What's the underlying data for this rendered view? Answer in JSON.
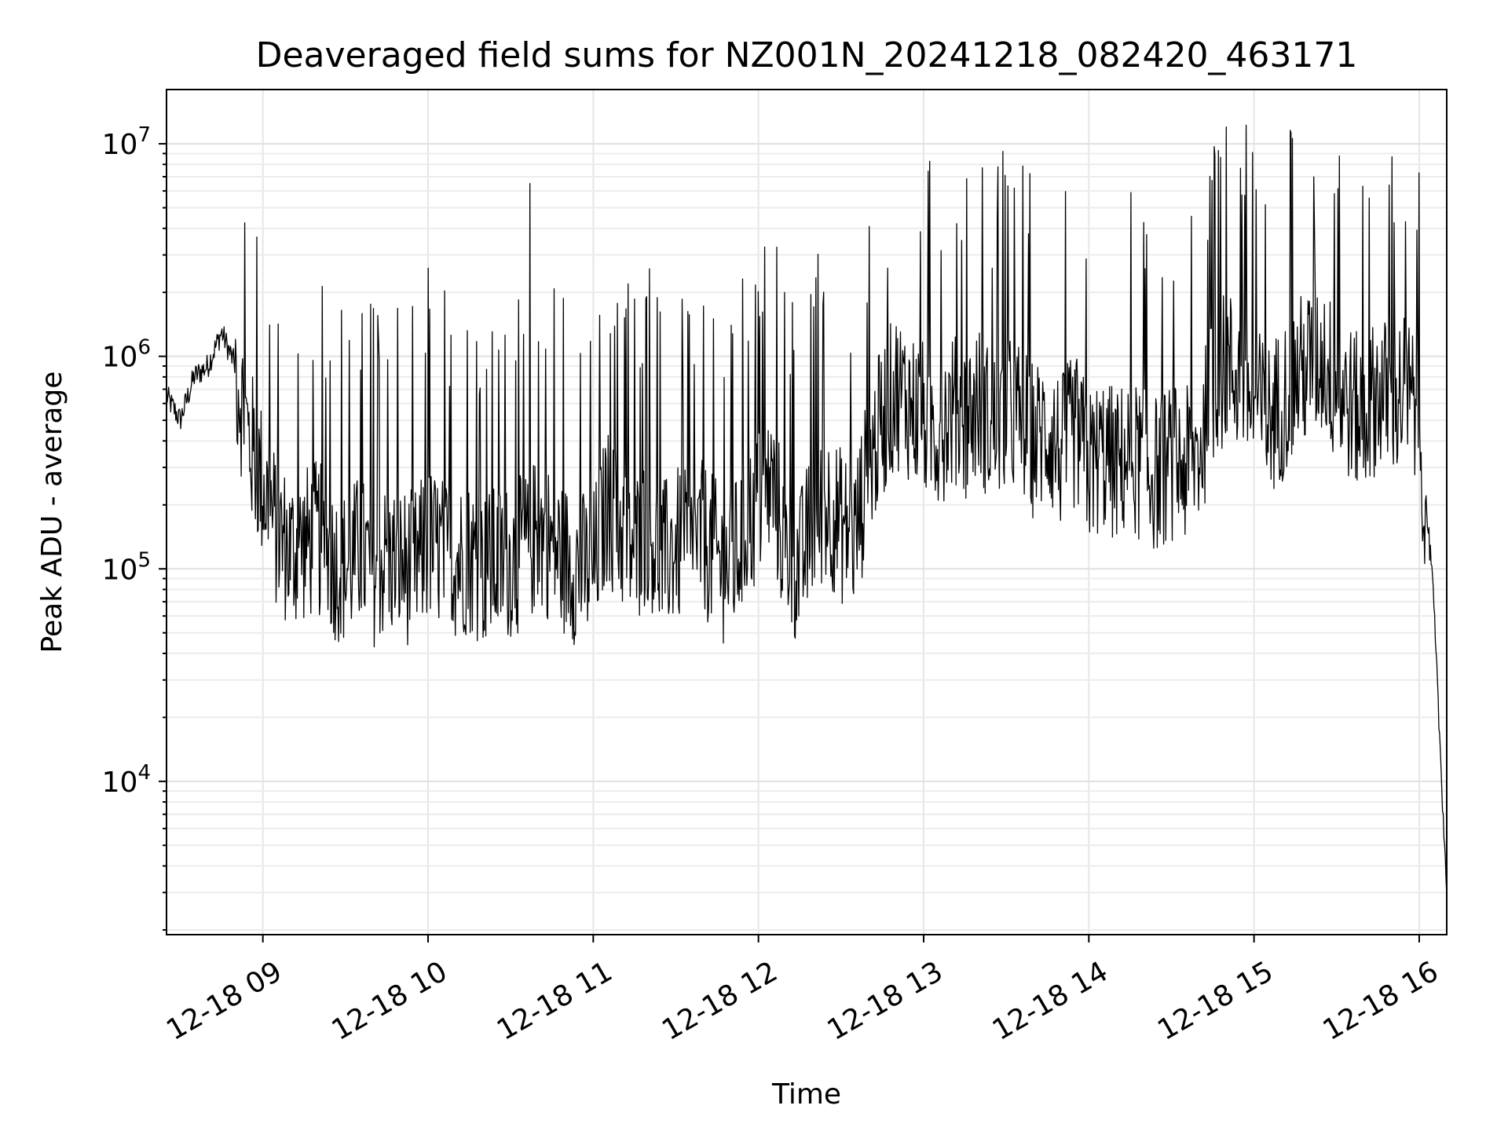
{
  "chart_data": {
    "type": "line",
    "title": "Deaveraged field sums for NZ001N_20241218_082420_463171",
    "xlabel": "Time",
    "ylabel": "Peak ADU - average",
    "yscale": "log",
    "grid": true,
    "x_tick_labels": [
      "12-18 09",
      "12-18 10",
      "12-18 11",
      "12-18 12",
      "12-18 13",
      "12-18 14",
      "12-18 15",
      "12-18 16"
    ],
    "y_tick_labels": [
      {
        "base": "10",
        "exp": "4"
      },
      {
        "base": "10",
        "exp": "5"
      },
      {
        "base": "10",
        "exp": "6"
      },
      {
        "base": "10",
        "exp": "7"
      }
    ],
    "xlim": [
      "2024-12-18 08:25",
      "2024-12-18 16:10"
    ],
    "ylim": [
      1900,
      18000000
    ],
    "line_color": "#000000",
    "series": [
      {
        "x": [
          "2024-12-18 08:25",
          "2024-12-18 08:30",
          "2024-12-18 08:35",
          "2024-12-18 08:40",
          "2024-12-18 08:45",
          "2024-12-18 08:50",
          "2024-12-18 08:55",
          "2024-12-18 09:00",
          "2024-12-18 09:05",
          "2024-12-18 09:10",
          "2024-12-18 09:15",
          "2024-12-18 09:20",
          "2024-12-18 09:25",
          "2024-12-18 09:30",
          "2024-12-18 09:35",
          "2024-12-18 09:40",
          "2024-12-18 09:45",
          "2024-12-18 09:50",
          "2024-12-18 09:55",
          "2024-12-18 10:00",
          "2024-12-18 10:05",
          "2024-12-18 10:10",
          "2024-12-18 10:15",
          "2024-12-18 10:20",
          "2024-12-18 10:25",
          "2024-12-18 10:30",
          "2024-12-18 10:35",
          "2024-12-18 10:40",
          "2024-12-18 10:45",
          "2024-12-18 10:50",
          "2024-12-18 10:55",
          "2024-12-18 11:00",
          "2024-12-18 11:05",
          "2024-12-18 11:10",
          "2024-12-18 11:15",
          "2024-12-18 11:20",
          "2024-12-18 11:25",
          "2024-12-18 11:30",
          "2024-12-18 11:35",
          "2024-12-18 11:40",
          "2024-12-18 11:45",
          "2024-12-18 11:50",
          "2024-12-18 11:55",
          "2024-12-18 12:00",
          "2024-12-18 12:05",
          "2024-12-18 12:10",
          "2024-12-18 12:15",
          "2024-12-18 12:20",
          "2024-12-18 12:25",
          "2024-12-18 12:30",
          "2024-12-18 12:35",
          "2024-12-18 12:40",
          "2024-12-18 12:45",
          "2024-12-18 12:50",
          "2024-12-18 12:55",
          "2024-12-18 13:00",
          "2024-12-18 13:05",
          "2024-12-18 13:10",
          "2024-12-18 13:15",
          "2024-12-18 13:20",
          "2024-12-18 13:25",
          "2024-12-18 13:30",
          "2024-12-18 13:35",
          "2024-12-18 13:40",
          "2024-12-18 13:45",
          "2024-12-18 13:50",
          "2024-12-18 13:55",
          "2024-12-18 14:00",
          "2024-12-18 14:05",
          "2024-12-18 14:10",
          "2024-12-18 14:15",
          "2024-12-18 14:20",
          "2024-12-18 14:25",
          "2024-12-18 14:30",
          "2024-12-18 14:35",
          "2024-12-18 14:40",
          "2024-12-18 14:45",
          "2024-12-18 14:50",
          "2024-12-18 14:55",
          "2024-12-18 15:00",
          "2024-12-18 15:05",
          "2024-12-18 15:10",
          "2024-12-18 15:15",
          "2024-12-18 15:20",
          "2024-12-18 15:25",
          "2024-12-18 15:30",
          "2024-12-18 15:35",
          "2024-12-18 15:40",
          "2024-12-18 15:45",
          "2024-12-18 15:50",
          "2024-12-18 15:55",
          "2024-12-18 16:00",
          "2024-12-18 16:05",
          "2024-12-18 16:10"
        ],
        "y": [
          650000,
          500000,
          800000,
          900000,
          1300000,
          900000,
          400000,
          250000,
          150000,
          120000,
          130000,
          140000,
          110000,
          100000,
          120000,
          100000,
          110000,
          105000,
          100000,
          130000,
          120000,
          110000,
          115000,
          100000,
          105000,
          110000,
          120000,
          150000,
          130000,
          110000,
          100000,
          100000,
          200000,
          150000,
          120000,
          160000,
          110000,
          130000,
          120000,
          140000,
          110000,
          100000,
          150000,
          200000,
          250000,
          120000,
          100000,
          170000,
          200000,
          160000,
          140000,
          300000,
          500000,
          700000,
          600000,
          500000,
          450000,
          550000,
          500000,
          600000,
          450000,
          550000,
          500000,
          400000,
          450000,
          350000,
          450000,
          300000,
          350000,
          300000,
          350000,
          300000,
          280000,
          320000,
          300000,
          350000,
          700000,
          900000,
          800000,
          600000,
          500000,
          600000,
          800000,
          900000,
          1000000,
          700000,
          600000,
          500000,
          700000,
          600000,
          700000,
          500000,
          80000,
          3000
        ]
      }
    ],
    "spikes": [
      {
        "x": "2024-12-18 10:37",
        "y": 6500000
      },
      {
        "x": "2024-12-18 14:47",
        "y": 9300000
      },
      {
        "x": "2024-12-18 14:50",
        "y": 12000000
      },
      {
        "x": "2024-12-18 15:55",
        "y": 4300000
      },
      {
        "x": "2024-12-18 15:22",
        "y": 4000000
      },
      {
        "x": "2024-12-18 12:47",
        "y": 2600000
      },
      {
        "x": "2024-12-18 13:25",
        "y": 2600000
      },
      {
        "x": "2024-12-18 10:00",
        "y": 2600000
      }
    ]
  }
}
